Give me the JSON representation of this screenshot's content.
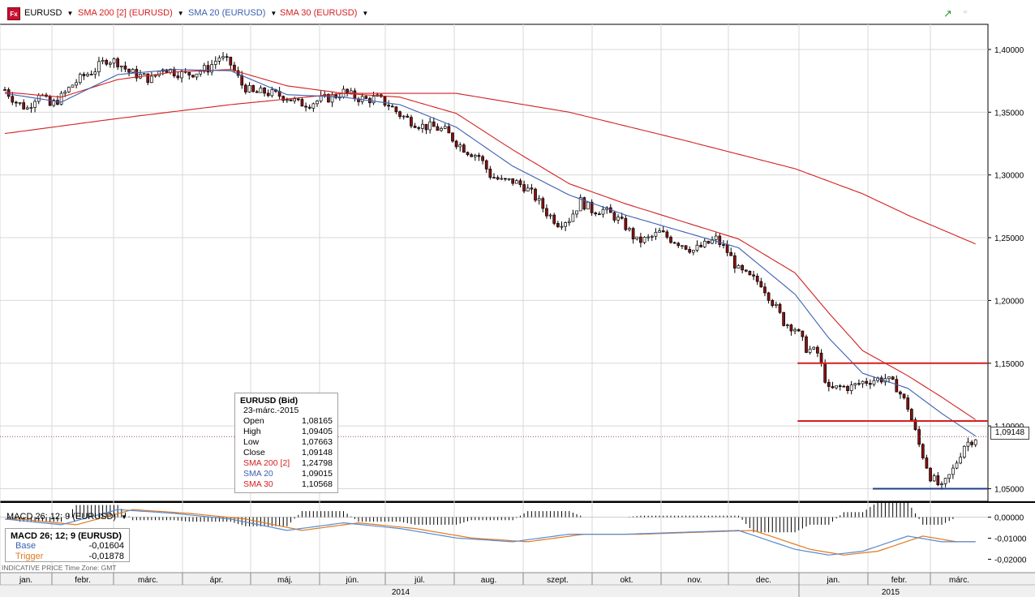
{
  "toolbar": {
    "logo": "Fx",
    "symbol": "EURUSD",
    "studies": [
      {
        "label": "SMA 200 [2] (EURUSD)",
        "color": "#d42020"
      },
      {
        "label": "SMA 20 (EURUSD)",
        "color": "#3a5fb0"
      },
      {
        "label": "SMA 30 (EURUSD)",
        "color": "#d42020"
      }
    ]
  },
  "info_box": {
    "title": "EURUSD (Bid)",
    "date": "23-márc.-2015",
    "rows": [
      {
        "label": "Open",
        "value": "1,08165",
        "color": "#000"
      },
      {
        "label": "High",
        "value": "1,09405",
        "color": "#000"
      },
      {
        "label": "Low",
        "value": "1,07663",
        "color": "#000"
      },
      {
        "label": "Close",
        "value": "1,09148",
        "color": "#000"
      },
      {
        "label": "SMA 200 [2]",
        "value": "1,24798",
        "color": "#d42020"
      },
      {
        "label": "SMA 20",
        "value": "1,09015",
        "color": "#3a5fb0"
      },
      {
        "label": "SMA 30",
        "value": "1,10568",
        "color": "#d42020"
      }
    ]
  },
  "last_price": "1,09148",
  "macd": {
    "label": "MACD 26; 12; 9 (EURUSD)",
    "box_title": "MACD 26; 12; 9 (EURUSD)",
    "base_label": "Base",
    "base_value": "-0,01604",
    "trigger_label": "Trigger",
    "trigger_value": "-0,01878"
  },
  "footer": "INDICATIVE PRICE   Time Zone: GMT",
  "chart_data": {
    "type": "candlestick",
    "ylim": [
      1.04,
      1.42
    ],
    "yticks": [
      "1,40000",
      "1,35000",
      "1,30000",
      "1,25000",
      "1,20000",
      "1,15000",
      "1,10000",
      "1,05000"
    ],
    "yticks_values": [
      1.4,
      1.35,
      1.3,
      1.25,
      1.2,
      1.15,
      1.1,
      1.05
    ],
    "months": [
      "jan.",
      "febr.",
      "márc.",
      "ápr.",
      "máj.",
      "jún.",
      "júl.",
      "aug.",
      "szept.",
      "okt.",
      "nov.",
      "dec.",
      "jan.",
      "febr.",
      "márc."
    ],
    "years": [
      "2014",
      "2015"
    ],
    "close_path": [
      [
        0,
        1.368
      ],
      [
        3,
        1.358
      ],
      [
        6,
        1.353
      ],
      [
        9,
        1.366
      ],
      [
        12,
        1.355
      ],
      [
        15,
        1.362
      ],
      [
        18,
        1.372
      ],
      [
        21,
        1.379
      ],
      [
        24,
        1.384
      ],
      [
        27,
        1.392
      ],
      [
        30,
        1.39
      ],
      [
        33,
        1.382
      ],
      [
        36,
        1.379
      ],
      [
        39,
        1.376
      ],
      [
        42,
        1.386
      ],
      [
        45,
        1.382
      ],
      [
        48,
        1.38
      ],
      [
        51,
        1.382
      ],
      [
        54,
        1.385
      ],
      [
        57,
        1.394
      ],
      [
        60,
        1.388
      ],
      [
        63,
        1.372
      ],
      [
        66,
        1.365
      ],
      [
        69,
        1.366
      ],
      [
        72,
        1.364
      ],
      [
        75,
        1.362
      ],
      [
        78,
        1.357
      ],
      [
        81,
        1.357
      ],
      [
        84,
        1.36
      ],
      [
        87,
        1.362
      ],
      [
        90,
        1.366
      ],
      [
        93,
        1.362
      ],
      [
        96,
        1.36
      ],
      [
        99,
        1.361
      ],
      [
        102,
        1.356
      ],
      [
        105,
        1.348
      ],
      [
        108,
        1.343
      ],
      [
        111,
        1.339
      ],
      [
        114,
        1.338
      ],
      [
        117,
        1.335
      ],
      [
        120,
        1.326
      ],
      [
        123,
        1.319
      ],
      [
        126,
        1.315
      ],
      [
        129,
        1.3
      ],
      [
        132,
        1.295
      ],
      [
        135,
        1.295
      ],
      [
        138,
        1.291
      ],
      [
        141,
        1.282
      ],
      [
        144,
        1.27
      ],
      [
        147,
        1.262
      ],
      [
        150,
        1.265
      ],
      [
        153,
        1.279
      ],
      [
        156,
        1.272
      ],
      [
        159,
        1.272
      ],
      [
        162,
        1.267
      ],
      [
        165,
        1.259
      ],
      [
        168,
        1.247
      ],
      [
        171,
        1.249
      ],
      [
        174,
        1.254
      ],
      [
        177,
        1.249
      ],
      [
        180,
        1.245
      ],
      [
        183,
        1.24
      ],
      [
        186,
        1.244
      ],
      [
        189,
        1.249
      ],
      [
        192,
        1.239
      ],
      [
        195,
        1.224
      ],
      [
        198,
        1.218
      ],
      [
        201,
        1.214
      ],
      [
        204,
        1.199
      ],
      [
        207,
        1.183
      ],
      [
        210,
        1.178
      ],
      [
        213,
        1.162
      ],
      [
        216,
        1.158
      ],
      [
        219,
        1.128
      ],
      [
        222,
        1.131
      ],
      [
        225,
        1.131
      ],
      [
        228,
        1.135
      ],
      [
        231,
        1.137
      ],
      [
        234,
        1.138
      ],
      [
        237,
        1.131
      ],
      [
        240,
        1.115
      ],
      [
        243,
        1.085
      ],
      [
        246,
        1.06
      ],
      [
        249,
        1.05
      ],
      [
        252,
        1.065
      ],
      [
        255,
        1.085
      ],
      [
        258,
        1.091
      ]
    ],
    "sma20_path": [
      [
        0,
        1.365
      ],
      [
        15,
        1.358
      ],
      [
        30,
        1.38
      ],
      [
        45,
        1.384
      ],
      [
        60,
        1.383
      ],
      [
        75,
        1.364
      ],
      [
        90,
        1.362
      ],
      [
        105,
        1.356
      ],
      [
        120,
        1.338
      ],
      [
        135,
        1.307
      ],
      [
        150,
        1.284
      ],
      [
        165,
        1.268
      ],
      [
        180,
        1.255
      ],
      [
        195,
        1.242
      ],
      [
        210,
        1.205
      ],
      [
        219,
        1.17
      ],
      [
        228,
        1.142
      ],
      [
        240,
        1.13
      ],
      [
        249,
        1.11
      ],
      [
        258,
        1.092
      ]
    ],
    "sma30_path": [
      [
        0,
        1.366
      ],
      [
        15,
        1.362
      ],
      [
        30,
        1.376
      ],
      [
        45,
        1.382
      ],
      [
        60,
        1.384
      ],
      [
        75,
        1.371
      ],
      [
        90,
        1.365
      ],
      [
        105,
        1.362
      ],
      [
        120,
        1.349
      ],
      [
        135,
        1.32
      ],
      [
        150,
        1.293
      ],
      [
        165,
        1.277
      ],
      [
        180,
        1.263
      ],
      [
        195,
        1.249
      ],
      [
        210,
        1.222
      ],
      [
        219,
        1.19
      ],
      [
        228,
        1.16
      ],
      [
        240,
        1.14
      ],
      [
        249,
        1.123
      ],
      [
        258,
        1.105
      ]
    ],
    "sma200_path": [
      [
        0,
        1.333
      ],
      [
        30,
        1.345
      ],
      [
        60,
        1.356
      ],
      [
        90,
        1.365
      ],
      [
        120,
        1.365
      ],
      [
        150,
        1.35
      ],
      [
        180,
        1.328
      ],
      [
        210,
        1.305
      ],
      [
        228,
        1.285
      ],
      [
        240,
        1.268
      ],
      [
        258,
        1.245
      ]
    ],
    "hlines": [
      {
        "value": 1.15,
        "x_from": 215,
        "color": "#d42020"
      },
      {
        "value": 1.104,
        "x_from": 215,
        "color": "#d42020"
      },
      {
        "value": 1.05,
        "x_from": 235,
        "color": "#1f3d8a"
      }
    ],
    "macd_ylim": [
      -0.026,
      0.006
    ],
    "macd_yticks": [
      "0,00000",
      "-0,01000",
      "-0,02000"
    ],
    "macd_yticks_values": [
      0,
      -0.01,
      -0.02
    ]
  }
}
